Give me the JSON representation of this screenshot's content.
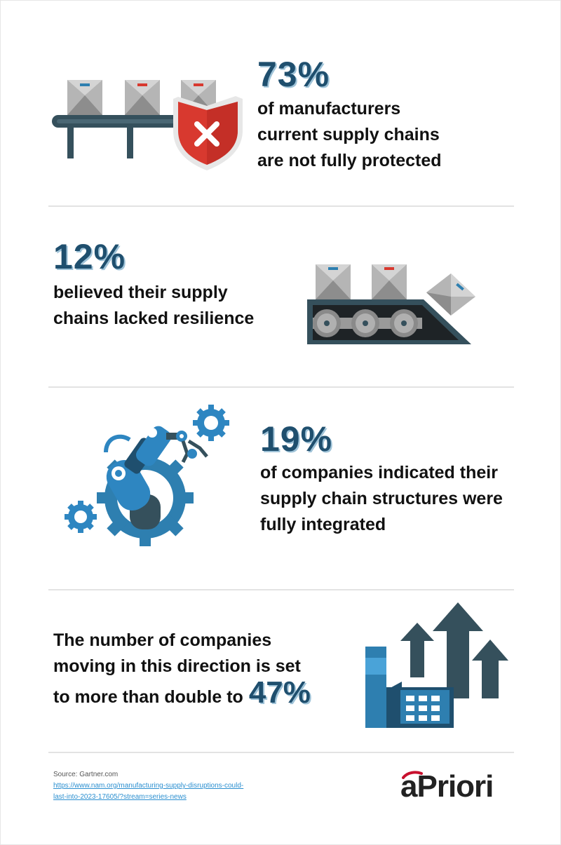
{
  "sections": [
    {
      "stat": "73%",
      "lines": [
        "of manufacturers",
        "current supply chains",
        "are not fully protected"
      ]
    },
    {
      "stat": "12%",
      "lines": [
        "believed their supply",
        "chains lacked resilience"
      ]
    },
    {
      "stat": "19%",
      "lines": [
        "of companies indicated their",
        "supply chain structures were",
        "fully integrated"
      ]
    },
    {
      "stat": "47%",
      "lines": [
        "The number of companies",
        "moving in this direction is set",
        "to more than double to"
      ]
    }
  ],
  "source": {
    "label": "Source: Gartner.com",
    "link_line1": "https://www.nam.org/manufacturing-supply-disruptions-could-",
    "link_line2": "last-into-2023-17605/?stream=series-news"
  },
  "logo": {
    "text": "aPriori"
  },
  "colors": {
    "dark_blue": "#1f4f6e",
    "mid_blue": "#2e7fb0",
    "slate": "#35505c",
    "red": "#d8392f",
    "grey": "#a9a9a9"
  }
}
